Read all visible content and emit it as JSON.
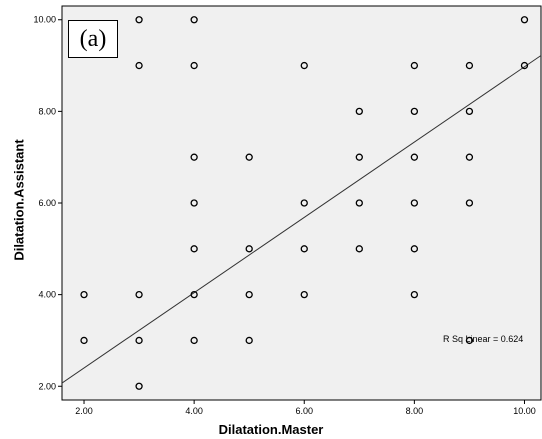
{
  "chart_data": {
    "type": "scatter",
    "panel_label": "(a)",
    "xlabel": "Dilatation.Master",
    "ylabel": "Dilatation.Assistant",
    "xlim": [
      1.6,
      10.3
    ],
    "ylim": [
      1.7,
      10.3
    ],
    "x_ticks": [
      "2.00",
      "4.00",
      "6.00",
      "8.00",
      "10.00"
    ],
    "x_tick_values": [
      2,
      4,
      6,
      8,
      10
    ],
    "y_ticks": [
      "2.00",
      "4.00",
      "6.00",
      "8.00",
      "10.00"
    ],
    "y_tick_values": [
      2,
      4,
      6,
      8,
      10
    ],
    "grid": false,
    "background_color": "#f0f0f0",
    "marker_color": "#000000",
    "points": [
      {
        "x": 2,
        "y": 4
      },
      {
        "x": 2,
        "y": 3
      },
      {
        "x": 3,
        "y": 10
      },
      {
        "x": 3,
        "y": 9
      },
      {
        "x": 3,
        "y": 4
      },
      {
        "x": 3,
        "y": 3
      },
      {
        "x": 3,
        "y": 2
      },
      {
        "x": 4,
        "y": 10
      },
      {
        "x": 4,
        "y": 9
      },
      {
        "x": 4,
        "y": 7
      },
      {
        "x": 4,
        "y": 6
      },
      {
        "x": 4,
        "y": 5
      },
      {
        "x": 4,
        "y": 4
      },
      {
        "x": 4,
        "y": 3
      },
      {
        "x": 5,
        "y": 7
      },
      {
        "x": 5,
        "y": 5
      },
      {
        "x": 5,
        "y": 4
      },
      {
        "x": 5,
        "y": 3
      },
      {
        "x": 6,
        "y": 9
      },
      {
        "x": 6,
        "y": 6
      },
      {
        "x": 6,
        "y": 5
      },
      {
        "x": 6,
        "y": 4
      },
      {
        "x": 7,
        "y": 8
      },
      {
        "x": 7,
        "y": 7
      },
      {
        "x": 7,
        "y": 6
      },
      {
        "x": 7,
        "y": 5
      },
      {
        "x": 8,
        "y": 9
      },
      {
        "x": 8,
        "y": 8
      },
      {
        "x": 8,
        "y": 7
      },
      {
        "x": 8,
        "y": 6
      },
      {
        "x": 8,
        "y": 5
      },
      {
        "x": 8,
        "y": 4
      },
      {
        "x": 9,
        "y": 9
      },
      {
        "x": 9,
        "y": 8
      },
      {
        "x": 9,
        "y": 7
      },
      {
        "x": 9,
        "y": 6
      },
      {
        "x": 9,
        "y": 3
      },
      {
        "x": 10,
        "y": 10
      },
      {
        "x": 10,
        "y": 9
      }
    ],
    "fit_line": {
      "x": [
        1.6,
        10.3
      ],
      "y": [
        2.07,
        9.22
      ]
    },
    "annotation": "R Sq Linear = 0.624"
  }
}
